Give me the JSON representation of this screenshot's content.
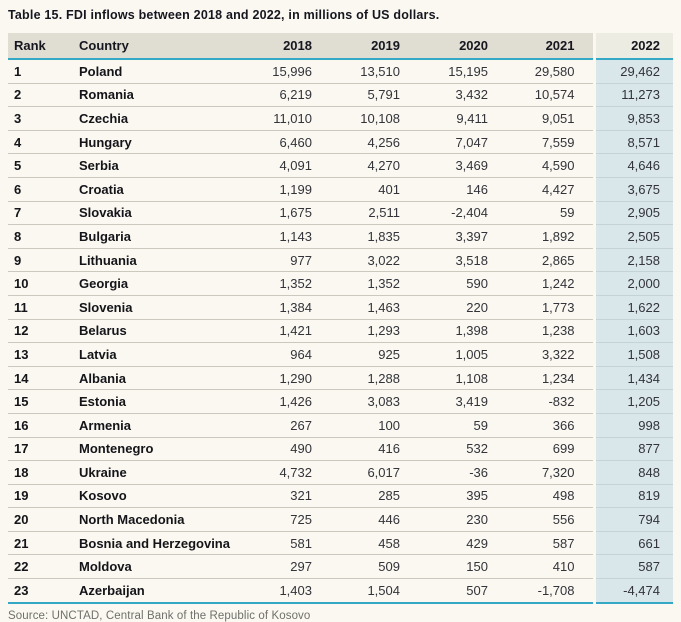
{
  "title": "Table 15. FDI inflows between 2018 and 2022, in millions of US dollars.",
  "source": "Source: UNCTAD, Central Bank of the Republic of Kosovo",
  "columns": [
    "Rank",
    "Country",
    "2018",
    "2019",
    "2020",
    "2021",
    "2022"
  ],
  "rows": [
    {
      "rank": "1",
      "country": "Poland",
      "values": [
        "15,996",
        "13,510",
        "15,195",
        "29,580",
        "29,462"
      ]
    },
    {
      "rank": "2",
      "country": "Romania",
      "values": [
        "6,219",
        "5,791",
        "3,432",
        "10,574",
        "11,273"
      ]
    },
    {
      "rank": "3",
      "country": "Czechia",
      "values": [
        "11,010",
        "10,108",
        "9,411",
        "9,051",
        "9,853"
      ]
    },
    {
      "rank": "4",
      "country": "Hungary",
      "values": [
        "6,460",
        "4,256",
        "7,047",
        "7,559",
        "8,571"
      ]
    },
    {
      "rank": "5",
      "country": "Serbia",
      "values": [
        "4,091",
        "4,270",
        "3,469",
        "4,590",
        "4,646"
      ]
    },
    {
      "rank": "6",
      "country": "Croatia",
      "values": [
        "1,199",
        "401",
        "146",
        "4,427",
        "3,675"
      ]
    },
    {
      "rank": "7",
      "country": "Slovakia",
      "values": [
        "1,675",
        "2,511",
        "-2,404",
        "59",
        "2,905"
      ]
    },
    {
      "rank": "8",
      "country": "Bulgaria",
      "values": [
        "1,143",
        "1,835",
        "3,397",
        "1,892",
        "2,505"
      ]
    },
    {
      "rank": "9",
      "country": "Lithuania",
      "values": [
        "977",
        "3,022",
        "3,518",
        "2,865",
        "2,158"
      ]
    },
    {
      "rank": "10",
      "country": "Georgia",
      "values": [
        "1,352",
        "1,352",
        "590",
        "1,242",
        "2,000"
      ]
    },
    {
      "rank": "11",
      "country": "Slovenia",
      "values": [
        "1,384",
        "1,463",
        "220",
        "1,773",
        "1,622"
      ]
    },
    {
      "rank": "12",
      "country": "Belarus",
      "values": [
        "1,421",
        "1,293",
        "1,398",
        "1,238",
        "1,603"
      ]
    },
    {
      "rank": "13",
      "country": "Latvia",
      "values": [
        "964",
        "925",
        "1,005",
        "3,322",
        "1,508"
      ]
    },
    {
      "rank": "14",
      "country": "Albania",
      "values": [
        "1,290",
        "1,288",
        "1,108",
        "1,234",
        "1,434"
      ]
    },
    {
      "rank": "15",
      "country": "Estonia",
      "values": [
        "1,426",
        "3,083",
        "3,419",
        "-832",
        "1,205"
      ]
    },
    {
      "rank": "16",
      "country": "Armenia",
      "values": [
        "267",
        "100",
        "59",
        "366",
        "998"
      ]
    },
    {
      "rank": "17",
      "country": "Montenegro",
      "values": [
        "490",
        "416",
        "532",
        "699",
        "877"
      ]
    },
    {
      "rank": "18",
      "country": "Ukraine",
      "values": [
        "4,732",
        "6,017",
        "-36",
        "7,320",
        "848"
      ]
    },
    {
      "rank": "19",
      "country": "Kosovo",
      "values": [
        "321",
        "285",
        "395",
        "498",
        "819"
      ]
    },
    {
      "rank": "20",
      "country": "North Macedonia",
      "values": [
        "725",
        "446",
        "230",
        "556",
        "794"
      ]
    },
    {
      "rank": "21",
      "country": "Bosnia and Herzegovina",
      "values": [
        "581",
        "458",
        "429",
        "587",
        "661"
      ]
    },
    {
      "rank": "22",
      "country": "Moldova",
      "values": [
        "297",
        "509",
        "150",
        "410",
        "587"
      ]
    },
    {
      "rank": "23",
      "country": "Azerbaijan",
      "values": [
        "1,403",
        "1,504",
        "507",
        "-1,708",
        "-4,474"
      ]
    }
  ],
  "colors": {
    "accent_teal_rule": "#35a8c6",
    "header_background": "#e0ddd3",
    "header_2022_background": "#edece3",
    "column_2022_background": "#d9e7ea",
    "page_background": "#faf8f1",
    "row_divider": "#cbc8bd",
    "title_text": "#16161f",
    "source_text": "#70706a"
  },
  "chart_data": {
    "type": "table",
    "title": "Table 15. FDI inflows between 2018 and 2022, in millions of US dollars.",
    "columns": [
      "Rank",
      "Country",
      "2018",
      "2019",
      "2020",
      "2021",
      "2022"
    ],
    "highlighted_column": "2022",
    "source": "Source: UNCTAD, Central Bank of the Republic of Kosovo"
  }
}
